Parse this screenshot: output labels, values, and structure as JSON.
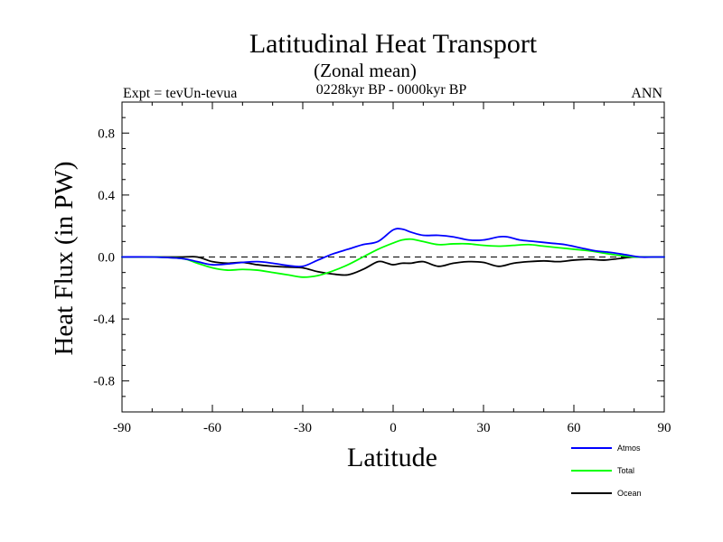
{
  "chart_data": {
    "type": "line",
    "title": "Latitudinal Heat Transport",
    "subtitle": "(Zonal mean)",
    "period": "0228kyr BP - 0000kyr BP",
    "left_label": "Expt = tevUn-tevua",
    "right_label": "ANN",
    "xlabel": "Latitude",
    "ylabel": "Heat Flux (in PW)",
    "xlim": [
      -90,
      90
    ],
    "ylim": [
      -1.0,
      1.0
    ],
    "xticks": [
      -90,
      -60,
      -30,
      0,
      30,
      60,
      90
    ],
    "xtick_labels": [
      "-90",
      "-60",
      "-30",
      "0",
      "30",
      "60",
      "90"
    ],
    "yticks": [
      -0.8,
      -0.4,
      0.0,
      0.4,
      0.8
    ],
    "ytick_labels": [
      "-0.8",
      "-0.4",
      "0.0",
      "0.4",
      "0.8"
    ],
    "zero_line": true,
    "legend_position": "bottom-right",
    "series": [
      {
        "name": "Atmos",
        "color": "#0000ff",
        "x": [
          -90,
          -80,
          -70,
          -65,
          -60,
          -55,
          -50,
          -45,
          -40,
          -35,
          -30,
          -25,
          -20,
          -15,
          -10,
          -5,
          0,
          3,
          6,
          10,
          15,
          20,
          25,
          30,
          35,
          38,
          42,
          47,
          52,
          57,
          62,
          67,
          72,
          77,
          82,
          86,
          90
        ],
        "y": [
          0,
          0,
          -0.01,
          -0.03,
          -0.05,
          -0.045,
          -0.035,
          -0.03,
          -0.04,
          -0.055,
          -0.06,
          -0.02,
          0.02,
          0.05,
          0.08,
          0.1,
          0.175,
          0.18,
          0.16,
          0.14,
          0.14,
          0.13,
          0.11,
          0.11,
          0.13,
          0.13,
          0.11,
          0.1,
          0.09,
          0.08,
          0.06,
          0.04,
          0.03,
          0.015,
          0.0,
          0.0,
          0
        ]
      },
      {
        "name": "Total",
        "color": "#00ff00",
        "x": [
          -90,
          -80,
          -70,
          -65,
          -60,
          -55,
          -50,
          -45,
          -40,
          -35,
          -30,
          -25,
          -20,
          -15,
          -10,
          -5,
          0,
          3,
          6,
          10,
          15,
          20,
          25,
          30,
          35,
          40,
          45,
          50,
          55,
          60,
          65,
          70,
          75,
          80,
          85,
          90
        ],
        "y": [
          0,
          0,
          -0.01,
          -0.04,
          -0.07,
          -0.085,
          -0.08,
          -0.085,
          -0.1,
          -0.115,
          -0.13,
          -0.12,
          -0.09,
          -0.05,
          0.0,
          0.05,
          0.09,
          0.11,
          0.115,
          0.1,
          0.08,
          0.085,
          0.085,
          0.075,
          0.07,
          0.075,
          0.08,
          0.07,
          0.06,
          0.05,
          0.04,
          0.025,
          0.01,
          0.0,
          0.0,
          0
        ]
      },
      {
        "name": "Ocean",
        "color": "#000000",
        "x": [
          -90,
          -80,
          -70,
          -65,
          -60,
          -55,
          -50,
          -45,
          -40,
          -35,
          -30,
          -25,
          -20,
          -15,
          -10,
          -5,
          -2,
          0,
          3,
          6,
          10,
          15,
          20,
          25,
          30,
          35,
          40,
          45,
          50,
          55,
          60,
          65,
          70,
          75,
          80,
          85,
          90
        ],
        "y": [
          0,
          0,
          0.0,
          0.0,
          -0.03,
          -0.04,
          -0.035,
          -0.05,
          -0.06,
          -0.065,
          -0.07,
          -0.095,
          -0.11,
          -0.115,
          -0.08,
          -0.03,
          -0.04,
          -0.05,
          -0.04,
          -0.04,
          -0.03,
          -0.06,
          -0.04,
          -0.03,
          -0.035,
          -0.06,
          -0.04,
          -0.03,
          -0.025,
          -0.03,
          -0.02,
          -0.015,
          -0.02,
          -0.01,
          0.0,
          0.0,
          0
        ]
      }
    ]
  }
}
